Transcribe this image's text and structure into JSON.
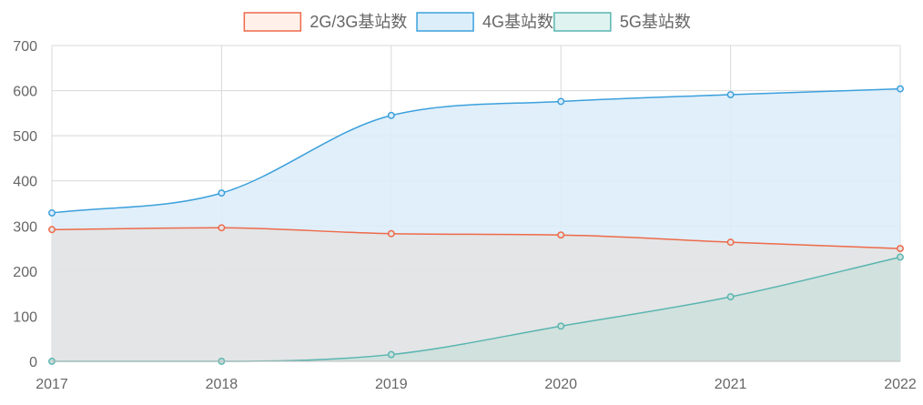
{
  "chart_data": {
    "type": "area",
    "x": [
      "2017",
      "2018",
      "2019",
      "2020",
      "2021",
      "2022"
    ],
    "ylim": [
      0,
      700
    ],
    "yticks": [
      0,
      100,
      200,
      300,
      400,
      500,
      600,
      700
    ],
    "grid": true,
    "legend_position": "top-center",
    "series": [
      {
        "name": "2G/3G基站数",
        "values": [
          292,
          296,
          283,
          280,
          264,
          250
        ],
        "line_color": "#ee6a4a",
        "fill_color": "#e3e3e3"
      },
      {
        "name": "4G基站数",
        "values": [
          329,
          373,
          545,
          576,
          591,
          604
        ],
        "line_color": "#3ca0dc",
        "fill_color": "#ddedfa"
      },
      {
        "name": "5G基站数",
        "values": [
          0,
          0,
          15,
          78,
          143,
          231
        ],
        "line_color": "#5ab5b0",
        "fill_color": "#cde0dd"
      }
    ],
    "legend_fill_colors": [
      "#fff0ea",
      "#dbeefa",
      "#dff3f1"
    ]
  }
}
